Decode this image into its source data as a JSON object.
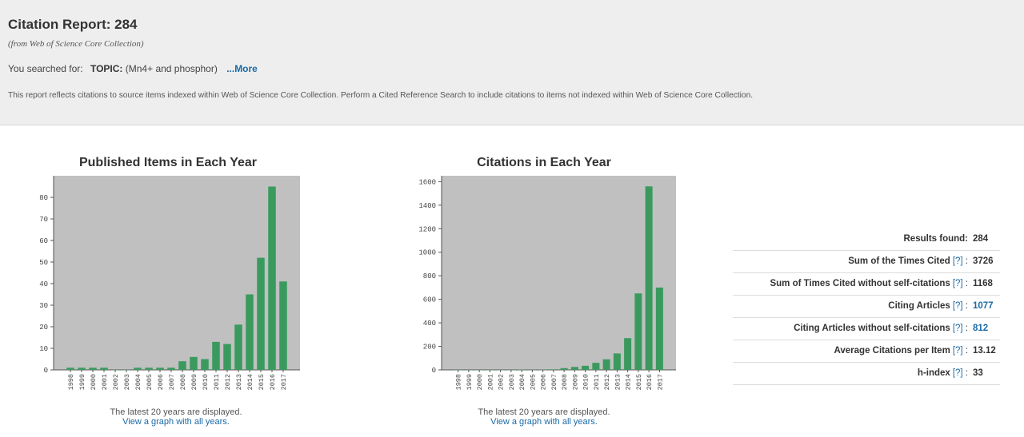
{
  "header": {
    "title": "Citation Report: 284",
    "subtitle": "(from Web of Science Core Collection)",
    "searched_prefix": "You searched for:",
    "topic_label": "TOPIC:",
    "topic_value": "(Mn4+ and phosphor)",
    "more_link": "...More",
    "note": "This report reflects citations to source items indexed within Web of Science Core Collection. Perform a Cited Reference Search to include citations to items not indexed within Web of Science Core Collection."
  },
  "chart_data": [
    {
      "type": "bar",
      "title": "Published Items in Each Year",
      "categories": [
        "1998",
        "1999",
        "2000",
        "2001",
        "2002",
        "2003",
        "2004",
        "2005",
        "2006",
        "2007",
        "2008",
        "2009",
        "2010",
        "2011",
        "2012",
        "2013",
        "2014",
        "2015",
        "2016",
        "2017"
      ],
      "values": [
        1,
        1,
        1,
        1,
        0,
        0,
        1,
        1,
        1,
        1,
        4,
        6,
        5,
        13,
        12,
        21,
        35,
        52,
        85,
        41
      ],
      "ylim": [
        0,
        90
      ],
      "yticks": [
        0,
        10,
        20,
        30,
        40,
        50,
        60,
        70,
        80
      ],
      "bar_color": "#3a9a5e",
      "plot_bg": "#c0c0c0",
      "caption": "The latest 20 years are displayed.",
      "link": "View a graph with all years."
    },
    {
      "type": "bar",
      "title": "Citations in Each Year",
      "categories": [
        "1998",
        "1999",
        "2000",
        "2001",
        "2002",
        "2003",
        "2004",
        "2005",
        "2006",
        "2007",
        "2008",
        "2009",
        "2010",
        "2011",
        "2012",
        "2013",
        "2014",
        "2015",
        "2016",
        "2017"
      ],
      "values": [
        0,
        0,
        0,
        0,
        0,
        0,
        2,
        1,
        2,
        5,
        15,
        25,
        35,
        60,
        90,
        140,
        270,
        650,
        1560,
        700
      ],
      "ylim": [
        0,
        1650
      ],
      "yticks": [
        0,
        200,
        400,
        600,
        800,
        1000,
        1200,
        1400,
        1600
      ],
      "bar_color": "#3a9a5e",
      "plot_bg": "#c0c0c0",
      "caption": "The latest 20 years are displayed.",
      "link": "View a graph with all years."
    }
  ],
  "stats": [
    {
      "label": "Results found:",
      "help": "",
      "value": "284",
      "is_link": false
    },
    {
      "label": "Sum of the Times Cited",
      "help": "[?]",
      "value": "3726",
      "is_link": false
    },
    {
      "label": "Sum of Times Cited without self-citations",
      "help": "[?]",
      "value": "1168",
      "is_link": false
    },
    {
      "label": "Citing Articles",
      "help": "[?]",
      "value": "1077",
      "is_link": true
    },
    {
      "label": "Citing Articles without self-citations",
      "help": "[?]",
      "value": "812",
      "is_link": true
    },
    {
      "label": "Average Citations per Item",
      "help": "[?]",
      "value": "13.12",
      "is_link": false
    },
    {
      "label": "h-index",
      "help": "[?]",
      "value": "33",
      "is_link": false
    }
  ]
}
